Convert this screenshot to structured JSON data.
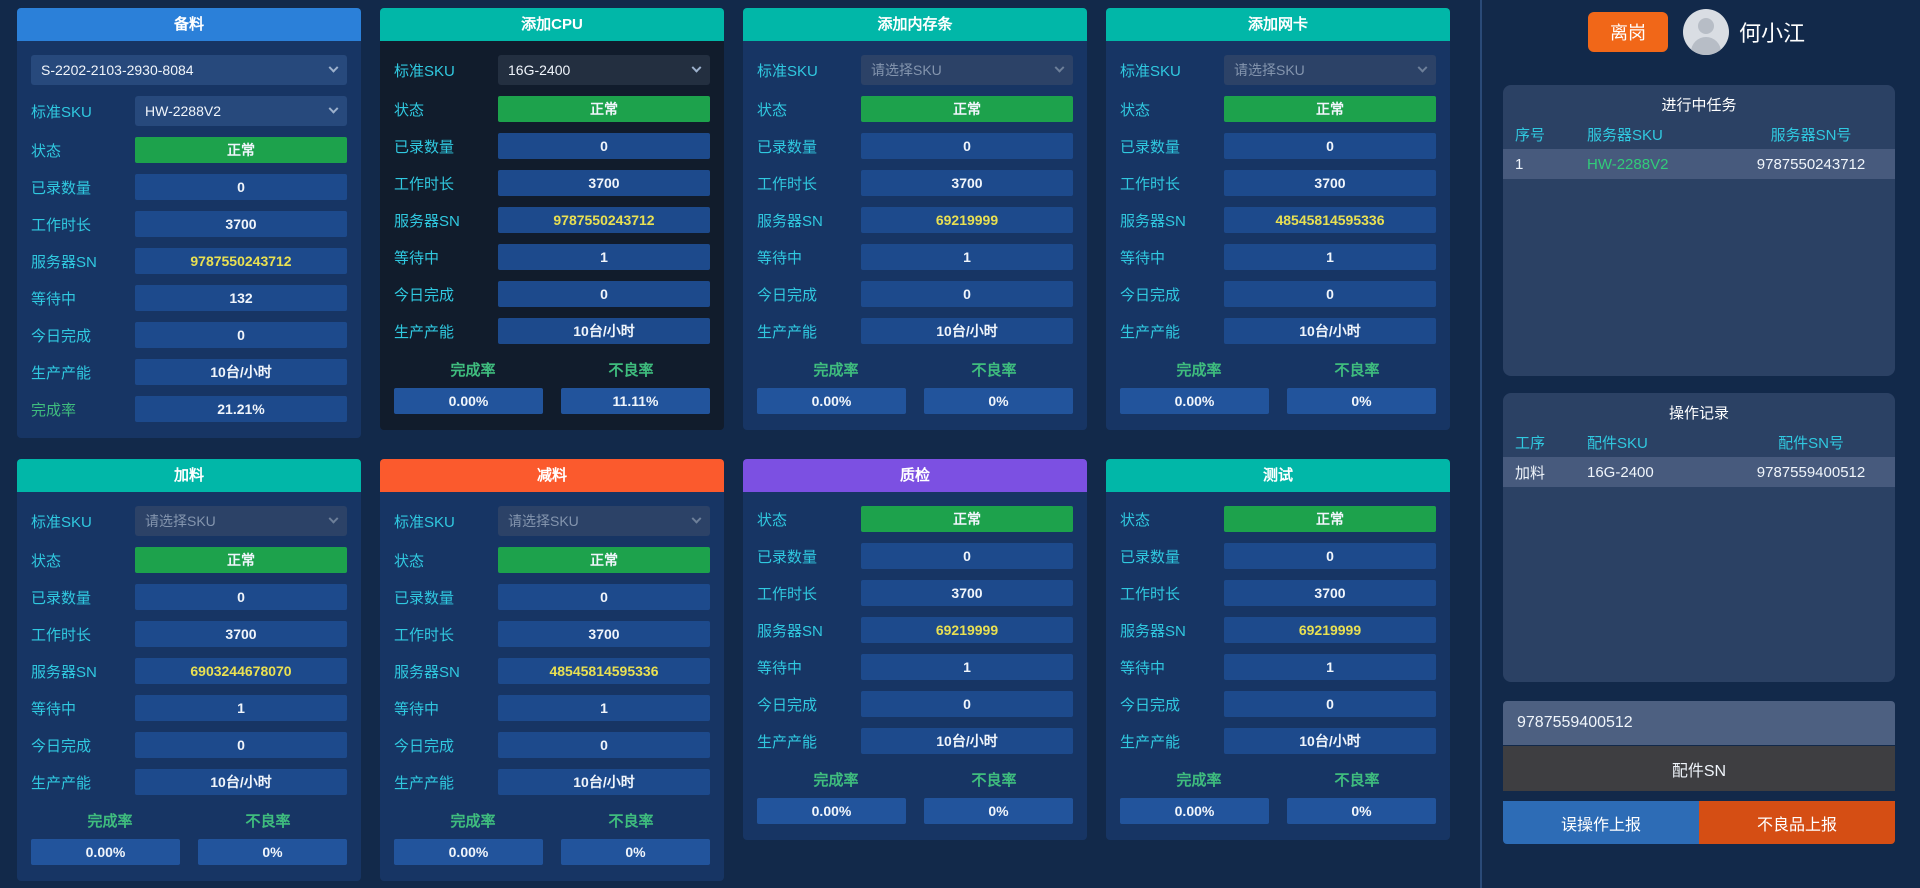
{
  "labels": {
    "sku": "标准SKU",
    "status": "状态",
    "recorded": "已录数量",
    "work_hours": "工作时长",
    "server_sn": "服务器SN",
    "waiting": "等待中",
    "today_done": "今日完成",
    "capacity": "生产产能",
    "completion": "完成率",
    "defect": "不良率",
    "sku_placeholder": "请选择SKU"
  },
  "colors": {
    "header_blue": "#2b80d9",
    "header_teal": "#01b7a8",
    "header_orange": "#fb5a2d",
    "header_purple": "#7c50e2",
    "status_green": "#1da24c",
    "sn_yellow": "#e9e052",
    "label_cyan": "#30c9e0",
    "footer_green": "#3fbd7e",
    "leave_orange": "#f16718",
    "report_blue": "#2d6cb6",
    "report_orange": "#d54e14"
  },
  "stations": [
    {
      "slug": "prepare-material",
      "title": "备料",
      "header_color": "#2b80d9",
      "body_theme": "navy",
      "top_select": "S-2202-2103-2930-8084",
      "sku_value": "HW-2288V2",
      "values": {
        "status": "正常",
        "recorded": "0",
        "work_hours": "3700",
        "server_sn": "9787550243712",
        "waiting": "132",
        "today_done": "0",
        "capacity": "10台/小时"
      },
      "completion_row": "21.21%"
    },
    {
      "slug": "add-cpu",
      "title": "添加CPU",
      "header_color": "#01b7a8",
      "body_theme": "dark",
      "sku_value": "16G-2400",
      "values": {
        "status": "正常",
        "recorded": "0",
        "work_hours": "3700",
        "server_sn": "9787550243712",
        "waiting": "1",
        "today_done": "0",
        "capacity": "10台/小时"
      },
      "footer": {
        "completion": "0.00%",
        "defect": "11.11%"
      }
    },
    {
      "slug": "add-memory",
      "title": "添加内存条",
      "header_color": "#01b7a8",
      "body_theme": "navy",
      "sku_placeholder": true,
      "values": {
        "status": "正常",
        "recorded": "0",
        "work_hours": "3700",
        "server_sn": "69219999",
        "waiting": "1",
        "today_done": "0",
        "capacity": "10台/小时"
      },
      "footer": {
        "completion": "0.00%",
        "defect": "0%"
      }
    },
    {
      "slug": "add-nic",
      "title": "添加网卡",
      "header_color": "#01b7a8",
      "body_theme": "navy",
      "sku_placeholder": true,
      "values": {
        "status": "正常",
        "recorded": "0",
        "work_hours": "3700",
        "server_sn": "48545814595336",
        "waiting": "1",
        "today_done": "0",
        "capacity": "10台/小时"
      },
      "footer": {
        "completion": "0.00%",
        "defect": "0%"
      }
    },
    {
      "slug": "add-material",
      "title": "加料",
      "header_color": "#01b7a8",
      "body_theme": "navy",
      "sku_placeholder": true,
      "values": {
        "status": "正常",
        "recorded": "0",
        "work_hours": "3700",
        "server_sn": "6903244678070",
        "waiting": "1",
        "today_done": "0",
        "capacity": "10台/小时"
      },
      "footer": {
        "completion": "0.00%",
        "defect": "0%"
      }
    },
    {
      "slug": "remove-material",
      "title": "减料",
      "header_color": "#fb5a2d",
      "body_theme": "navy",
      "sku_placeholder": true,
      "values": {
        "status": "正常",
        "recorded": "0",
        "work_hours": "3700",
        "server_sn": "48545814595336",
        "waiting": "1",
        "today_done": "0",
        "capacity": "10台/小时"
      },
      "footer": {
        "completion": "0.00%",
        "defect": "0%"
      }
    },
    {
      "slug": "quality-check",
      "title": "质检",
      "header_color": "#7c50e2",
      "body_theme": "navy",
      "values": {
        "status": "正常",
        "recorded": "0",
        "work_hours": "3700",
        "server_sn": "69219999",
        "waiting": "1",
        "today_done": "0",
        "capacity": "10台/小时"
      },
      "footer": {
        "completion": "0.00%",
        "defect": "0%"
      }
    },
    {
      "slug": "test",
      "title": "测试",
      "header_color": "#01b7a8",
      "body_theme": "navy",
      "values": {
        "status": "正常",
        "recorded": "0",
        "work_hours": "3700",
        "server_sn": "69219999",
        "waiting": "1",
        "today_done": "0",
        "capacity": "10台/小时"
      },
      "footer": {
        "completion": "0.00%",
        "defect": "0%"
      }
    }
  ],
  "user": {
    "name": "何小江",
    "leave_button": "离岗"
  },
  "sidebar": {
    "tasks_panel": {
      "title": "进行中任务",
      "columns": [
        "序号",
        "服务器SKU",
        "服务器SN号"
      ],
      "rows": [
        {
          "cells": [
            "1",
            "HW-2288V2",
            "9787550243712"
          ],
          "highlight_col": 1
        }
      ]
    },
    "records_panel": {
      "title": "操作记录",
      "columns": [
        "工序",
        "配件SKU",
        "配件SN号"
      ],
      "rows": [
        {
          "cells": [
            "加料",
            "16G-2400",
            "9787559400512"
          ]
        }
      ]
    },
    "sn_input": "9787559400512",
    "sn_button": "配件SN",
    "mis_report": "误操作上报",
    "defect_report": "不良品上报"
  }
}
